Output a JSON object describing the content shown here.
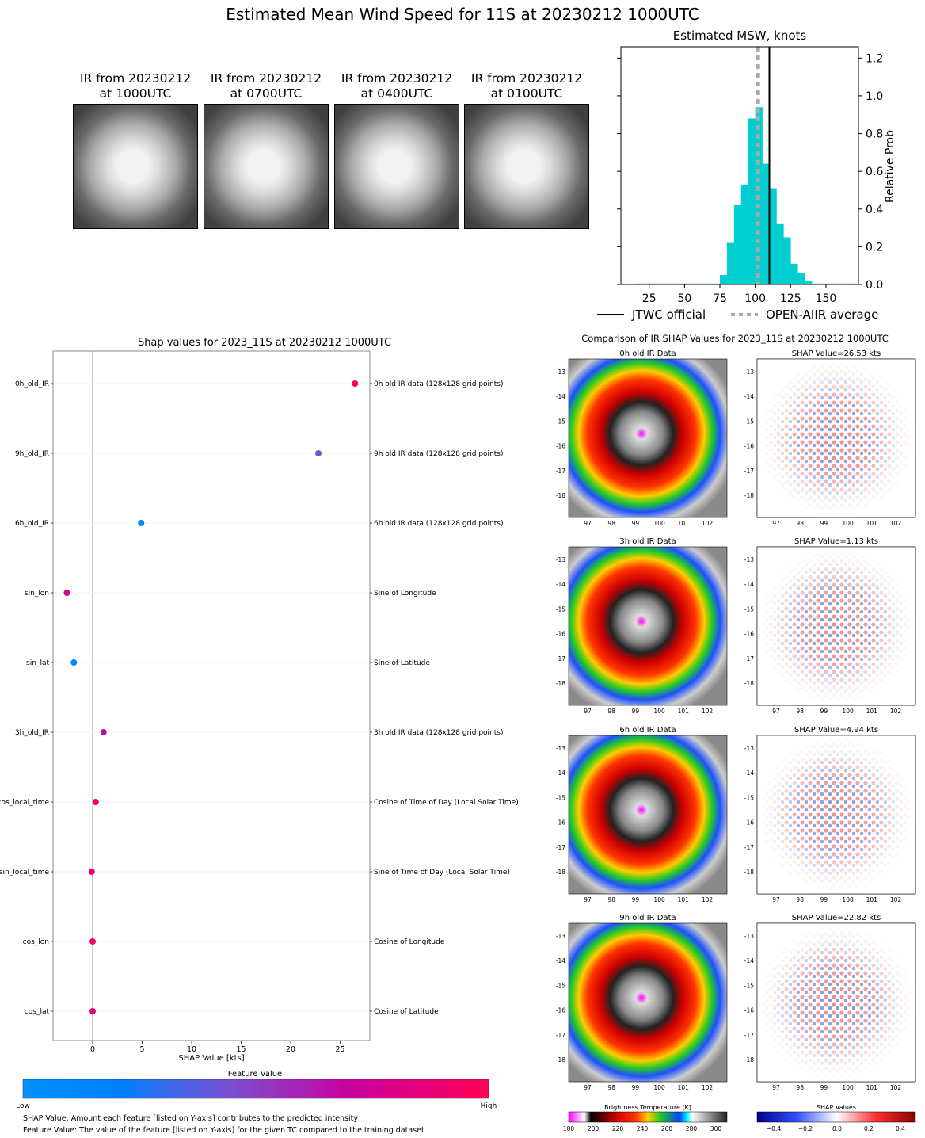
{
  "title": "Estimated Mean Wind Speed for 11S at 20230212 1000UTC",
  "ir_thumbnails": [
    {
      "caption": "IR from 20230212\nat 1000UTC"
    },
    {
      "caption": "IR from 20230212\nat 0700UTC"
    },
    {
      "caption": "IR from 20230212\nat 0400UTC"
    },
    {
      "caption": "IR from 20230212\nat 0100UTC"
    }
  ],
  "chart_data": [
    {
      "type": "bar",
      "title": "Estimated MSW, knots",
      "xlabel": "",
      "ylabel": "Relative Prob",
      "xlim": [
        5,
        173
      ],
      "ylim": [
        0,
        1.26
      ],
      "xticks": [
        25,
        50,
        75,
        100,
        125,
        150
      ],
      "yticks": [
        0.0,
        0.2,
        0.4,
        0.6,
        0.8,
        1.0,
        1.2
      ],
      "bin_width": 5,
      "bin_starts": [
        15,
        20,
        25,
        30,
        35,
        40,
        45,
        50,
        55,
        60,
        65,
        70,
        75,
        80,
        85,
        90,
        95,
        100,
        105,
        110,
        115,
        120,
        125,
        130,
        135,
        140,
        145,
        150,
        155,
        160,
        165
      ],
      "values": [
        0.005,
        0.005,
        0.005,
        0.005,
        0.005,
        0.005,
        0.005,
        0.005,
        0.005,
        0.005,
        0.005,
        0.005,
        0.05,
        0.22,
        0.42,
        0.53,
        0.88,
        0.94,
        0.64,
        0.51,
        0.32,
        0.25,
        0.11,
        0.06,
        0.02,
        0.005,
        0.005,
        0.005,
        0.005,
        0.005,
        0.005
      ],
      "bar_color": "#00CED1",
      "jtwc_official": 110,
      "open_aiir_average": 102,
      "legend": [
        "JTWC official",
        "OPEN-AIIR average"
      ],
      "legend_position": "bottom"
    },
    {
      "type": "scatter",
      "title": "Shap values for 2023_11S at 20230212 1000UTC",
      "xlabel": "SHAP Value [kts]",
      "xlim": [
        -4,
        28
      ],
      "xticks": [
        0,
        5,
        10,
        15,
        20,
        25
      ],
      "features": [
        {
          "name": "0h_old_IR",
          "desc": "0h old IR data (128x128 grid points)",
          "shap": 26.5,
          "feature_value": 1.0
        },
        {
          "name": "9h_old_IR",
          "desc": "9h old IR data (128x128 grid points)",
          "shap": 22.8,
          "feature_value": 0.45
        },
        {
          "name": "6h_old_IR",
          "desc": "6h old IR data (128x128 grid points)",
          "shap": 4.9,
          "feature_value": 0.1
        },
        {
          "name": "sin_lon",
          "desc": "Sine of Longitude",
          "shap": -2.6,
          "feature_value": 0.8
        },
        {
          "name": "sin_lat",
          "desc": "Sine of Latitude",
          "shap": -1.9,
          "feature_value": 0.1
        },
        {
          "name": "3h_old_IR",
          "desc": "3h old IR data (128x128 grid points)",
          "shap": 1.1,
          "feature_value": 0.65
        },
        {
          "name": "cos_local_time",
          "desc": "Cosine of Time of Day (Local Solar Time)",
          "shap": 0.3,
          "feature_value": 0.9
        },
        {
          "name": "sin_local_time",
          "desc": "Sine of Time of Day (Local Solar Time)",
          "shap": -0.1,
          "feature_value": 0.85
        },
        {
          "name": "cos_lon",
          "desc": "Cosine of Longitude",
          "shap": 0.0,
          "feature_value": 0.95
        },
        {
          "name": "cos_lat",
          "desc": "Cosine of Latitude",
          "shap": 0.0,
          "feature_value": 0.85
        }
      ],
      "colorbar_title": "Feature Value",
      "colorbar_low": "Low",
      "colorbar_high": "High",
      "color_low": "#0080ff",
      "color_high": "#ff0050"
    }
  ],
  "footnotes": [
    "SHAP Value: Amount each feature [listed on Y-axis] contributes to the predicted intensity",
    "Feature Value: The value of the feature [listed on Y-axis] for the given TC compared to the training dataset"
  ],
  "comparison": {
    "title": "Comparison of IR SHAP Values for 2023_11S at 20230212 1000UTC",
    "rows": [
      {
        "ir_title": "0h old IR Data",
        "shap_title": "SHAP Value=26.53 kts"
      },
      {
        "ir_title": "3h old IR Data",
        "shap_title": "SHAP Value=1.13 kts"
      },
      {
        "ir_title": "6h old IR Data",
        "shap_title": "SHAP Value=4.94 kts"
      },
      {
        "ir_title": "9h old IR Data",
        "shap_title": "SHAP Value=22.82 kts"
      }
    ],
    "lat_ticks": [
      "-13",
      "-14",
      "-15",
      "-16",
      "-17",
      "-18"
    ],
    "lon_ticks": [
      "97",
      "98",
      "99",
      "100",
      "101",
      "102"
    ],
    "bt_colorbar": {
      "title": "Brightness Temperature [K]",
      "ticks": [
        "180",
        "200",
        "220",
        "240",
        "260",
        "280",
        "300"
      ]
    },
    "shap_colorbar": {
      "title": "SHAP Values",
      "ticks": [
        "−0.4",
        "−0.2",
        "0.0",
        "0.2",
        "0.4"
      ]
    }
  }
}
